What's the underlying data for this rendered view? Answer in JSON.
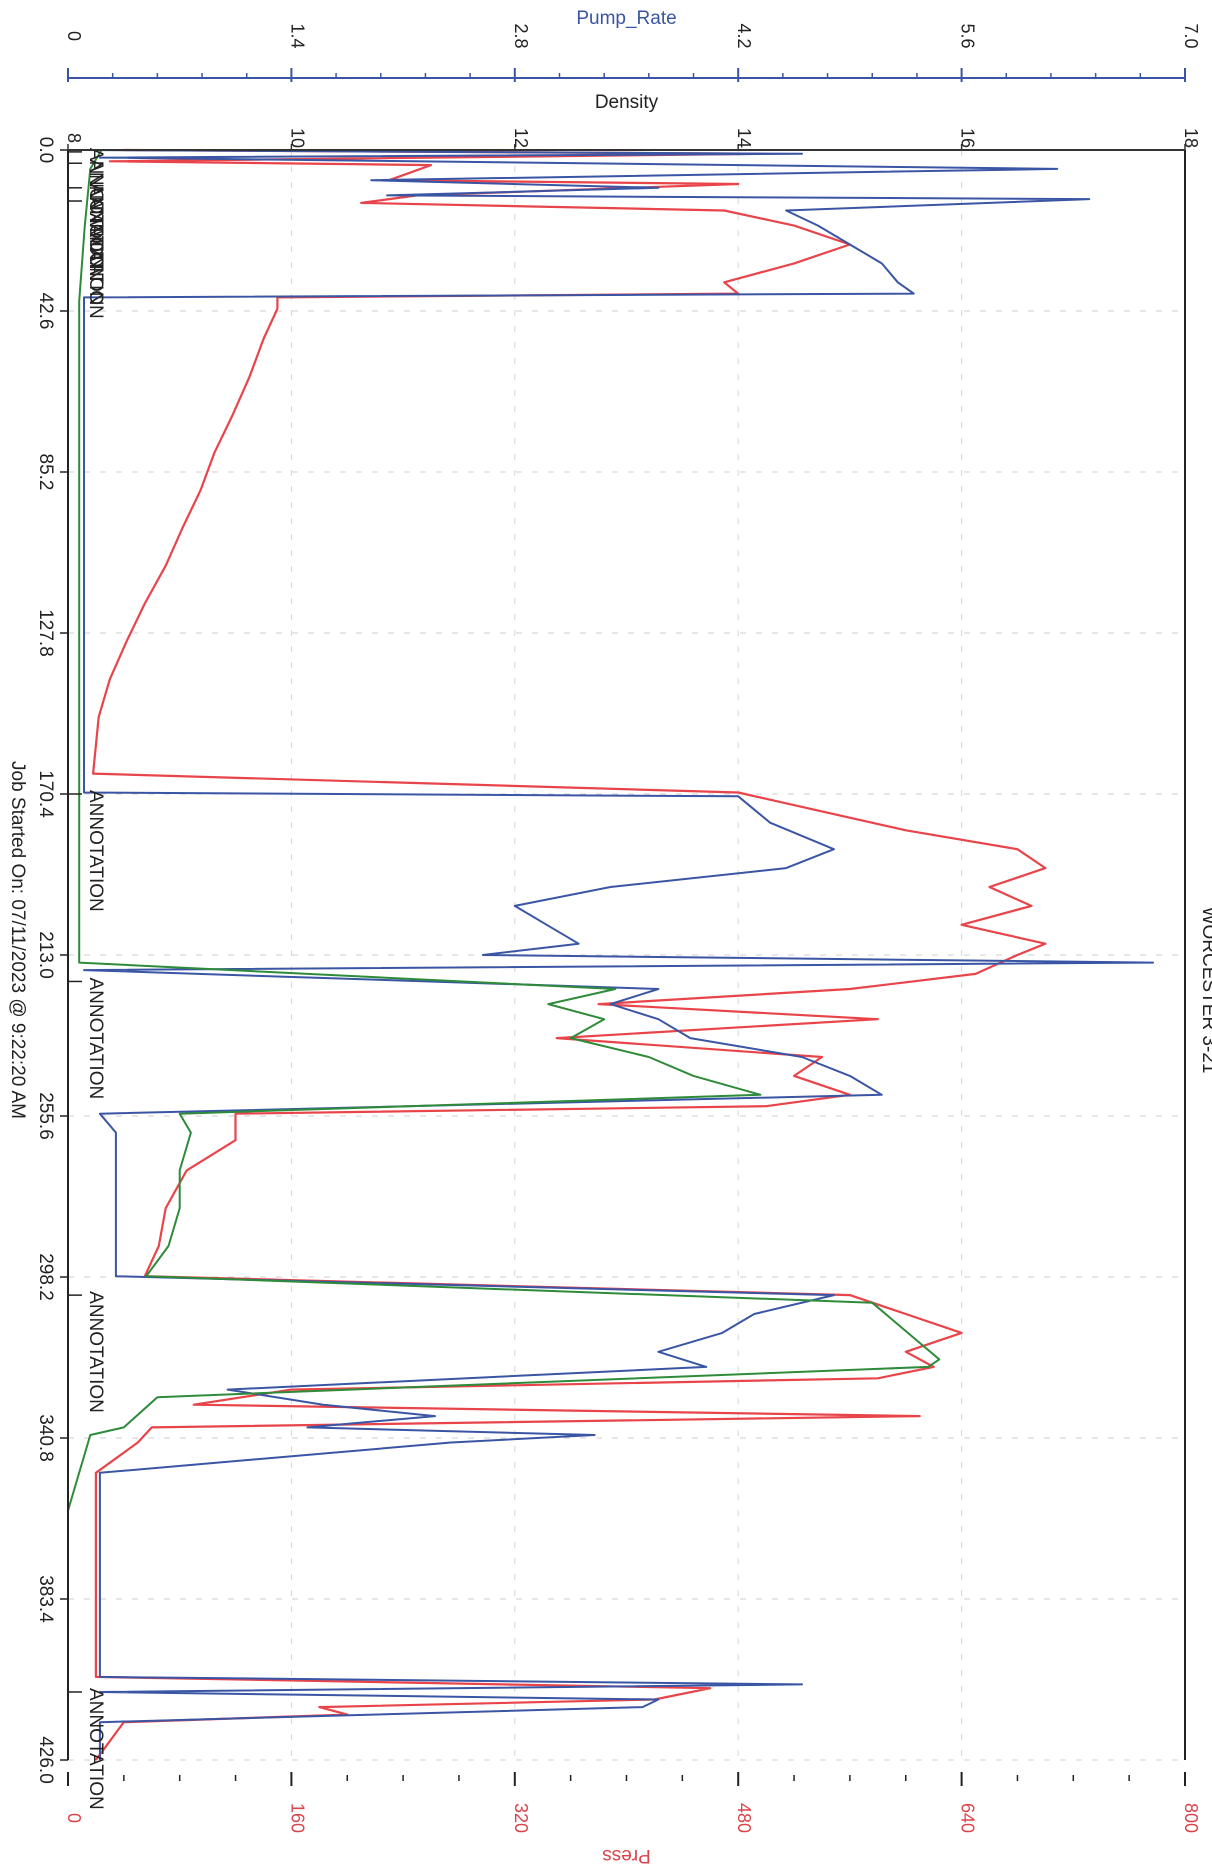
{
  "chart_data": {
    "type": "line",
    "title": "WORCESTER 3-21",
    "rotated_page": true,
    "footer": "Job Started On: 07/11/2023 @ 9:22:20 AM",
    "x_axis": {
      "label": "",
      "ticks": [
        "0.0",
        "42.6",
        "85.2",
        "127.8",
        "170.4",
        "213.0",
        "255.6",
        "298.2",
        "340.8",
        "383.4",
        "426.0"
      ],
      "range": [
        0,
        426
      ]
    },
    "axes": {
      "pump_rate": {
        "label": "Pump_Rate",
        "color": "#3a55a4",
        "ticks": [
          "0",
          "1.4",
          "2.8",
          "4.2",
          "5.6",
          "7.0"
        ],
        "range": [
          0,
          7
        ]
      },
      "density": {
        "label": "Density",
        "color": "#222222",
        "ticks": [
          "8",
          "10",
          "12",
          "14",
          "16",
          "18"
        ],
        "range": [
          8,
          18
        ]
      },
      "press": {
        "label": "Press",
        "color": "#d9434a",
        "ticks": [
          "0",
          "160",
          "320",
          "480",
          "640",
          "800"
        ],
        "range": [
          0,
          800
        ]
      }
    },
    "grid": true,
    "annotations": [
      {
        "x": 0.5,
        "text": "ANNOTATION"
      },
      {
        "x": 3.5,
        "text": "ANNOTATION"
      },
      {
        "x": 10,
        "text": "ANNOTATION"
      },
      {
        "x": 13.5,
        "text": "ANNOTATION"
      },
      {
        "x": 170.4,
        "text": "ANNOTATION"
      },
      {
        "x": 220,
        "text": "ANNOTATION"
      },
      {
        "x": 303,
        "text": "ANNOTATION"
      },
      {
        "x": 408,
        "text": "ANNOTATION"
      }
    ],
    "series": [
      {
        "name": "Press",
        "color": "#e8444a",
        "points": [
          [
            0,
            40
          ],
          [
            1,
            500
          ],
          [
            3,
            30
          ],
          [
            4,
            260
          ],
          [
            8,
            230
          ],
          [
            9,
            480
          ],
          [
            12,
            250
          ],
          [
            14,
            210
          ],
          [
            16,
            470
          ],
          [
            20,
            520
          ],
          [
            25,
            560
          ],
          [
            30,
            520
          ],
          [
            35,
            470
          ],
          [
            38,
            480
          ],
          [
            39,
            150
          ],
          [
            42,
            150
          ],
          [
            50,
            140
          ],
          [
            60,
            130
          ],
          [
            70,
            118
          ],
          [
            80,
            105
          ],
          [
            90,
            95
          ],
          [
            100,
            82
          ],
          [
            110,
            70
          ],
          [
            120,
            55
          ],
          [
            130,
            42
          ],
          [
            140,
            30
          ],
          [
            150,
            22
          ],
          [
            165,
            18
          ],
          [
            170,
            480
          ],
          [
            175,
            540
          ],
          [
            180,
            600
          ],
          [
            185,
            680
          ],
          [
            190,
            700
          ],
          [
            195,
            660
          ],
          [
            200,
            690
          ],
          [
            205,
            640
          ],
          [
            210,
            700
          ],
          [
            213,
            680
          ],
          [
            218,
            650
          ],
          [
            222,
            560
          ],
          [
            226,
            380
          ],
          [
            230,
            580
          ],
          [
            235,
            350
          ],
          [
            240,
            540
          ],
          [
            245,
            520
          ],
          [
            250,
            560
          ],
          [
            253,
            500
          ],
          [
            255,
            120
          ],
          [
            262,
            120
          ],
          [
            270,
            85
          ],
          [
            280,
            70
          ],
          [
            290,
            65
          ],
          [
            298,
            55
          ],
          [
            303,
            560
          ],
          [
            308,
            600
          ],
          [
            313,
            640
          ],
          [
            318,
            600
          ],
          [
            322,
            620
          ],
          [
            325,
            580
          ],
          [
            328,
            160
          ],
          [
            332,
            90
          ],
          [
            335,
            610
          ],
          [
            338,
            60
          ],
          [
            342,
            50
          ],
          [
            350,
            20
          ],
          [
            380,
            20
          ],
          [
            404,
            20
          ],
          [
            407,
            460
          ],
          [
            410,
            420
          ],
          [
            412,
            180
          ],
          [
            414,
            200
          ],
          [
            416,
            40
          ],
          [
            426,
            20
          ]
        ]
      },
      {
        "name": "Pump_Rate",
        "color": "#3a55a4",
        "points": [
          [
            0,
            0.1
          ],
          [
            1,
            4.6
          ],
          [
            2,
            0.2
          ],
          [
            5,
            6.2
          ],
          [
            8,
            1.9
          ],
          [
            10,
            3.7
          ],
          [
            12,
            2.0
          ],
          [
            13,
            6.4
          ],
          [
            16,
            4.5
          ],
          [
            20,
            4.7
          ],
          [
            25,
            4.9
          ],
          [
            30,
            5.1
          ],
          [
            35,
            5.2
          ],
          [
            38,
            5.3
          ],
          [
            39,
            0.1
          ],
          [
            60,
            0.1
          ],
          [
            100,
            0.1
          ],
          [
            150,
            0.1
          ],
          [
            170,
            0.1
          ],
          [
            171,
            4.2
          ],
          [
            178,
            4.4
          ],
          [
            185,
            4.8
          ],
          [
            190,
            4.5
          ],
          [
            195,
            3.4
          ],
          [
            200,
            2.8
          ],
          [
            205,
            3.0
          ],
          [
            210,
            3.2
          ],
          [
            213,
            2.6
          ],
          [
            215,
            6.8
          ],
          [
            217,
            0.1
          ],
          [
            222,
            3.7
          ],
          [
            226,
            3.4
          ],
          [
            230,
            3.7
          ],
          [
            235,
            3.9
          ],
          [
            240,
            4.6
          ],
          [
            245,
            4.9
          ],
          [
            250,
            5.1
          ],
          [
            255,
            0.2
          ],
          [
            260,
            0.3
          ],
          [
            280,
            0.3
          ],
          [
            298,
            0.3
          ],
          [
            303,
            4.8
          ],
          [
            308,
            4.3
          ],
          [
            313,
            4.1
          ],
          [
            318,
            3.7
          ],
          [
            322,
            4.0
          ],
          [
            328,
            1.0
          ],
          [
            332,
            1.6
          ],
          [
            335,
            2.3
          ],
          [
            338,
            1.5
          ],
          [
            340,
            3.3
          ],
          [
            342,
            2.4
          ],
          [
            350,
            0.2
          ],
          [
            380,
            0.2
          ],
          [
            404,
            0.2
          ],
          [
            406,
            4.6
          ],
          [
            408,
            0.2
          ],
          [
            410,
            3.7
          ],
          [
            412,
            3.6
          ],
          [
            416,
            0.2
          ],
          [
            426,
            0.2
          ]
        ]
      },
      {
        "name": "Density",
        "color": "#2e8b3a",
        "points": [
          [
            0,
            8.3
          ],
          [
            5,
            8.2
          ],
          [
            20,
            8.15
          ],
          [
            40,
            8.1
          ],
          [
            100,
            8.1
          ],
          [
            170,
            8.1
          ],
          [
            215,
            8.1
          ],
          [
            222,
            12.9
          ],
          [
            226,
            12.3
          ],
          [
            230,
            12.8
          ],
          [
            235,
            12.5
          ],
          [
            240,
            13.2
          ],
          [
            245,
            13.6
          ],
          [
            250,
            14.2
          ],
          [
            255,
            9.0
          ],
          [
            260,
            9.1
          ],
          [
            270,
            9.0
          ],
          [
            280,
            9.0
          ],
          [
            290,
            8.9
          ],
          [
            298,
            8.7
          ],
          [
            305,
            15.2
          ],
          [
            310,
            15.4
          ],
          [
            315,
            15.6
          ],
          [
            320,
            15.8
          ],
          [
            322,
            15.7
          ],
          [
            330,
            8.8
          ],
          [
            338,
            8.5
          ],
          [
            340,
            8.2
          ],
          [
            360,
            8.0
          ],
          [
            390,
            8.0
          ],
          [
            426,
            8.0
          ]
        ]
      }
    ]
  }
}
